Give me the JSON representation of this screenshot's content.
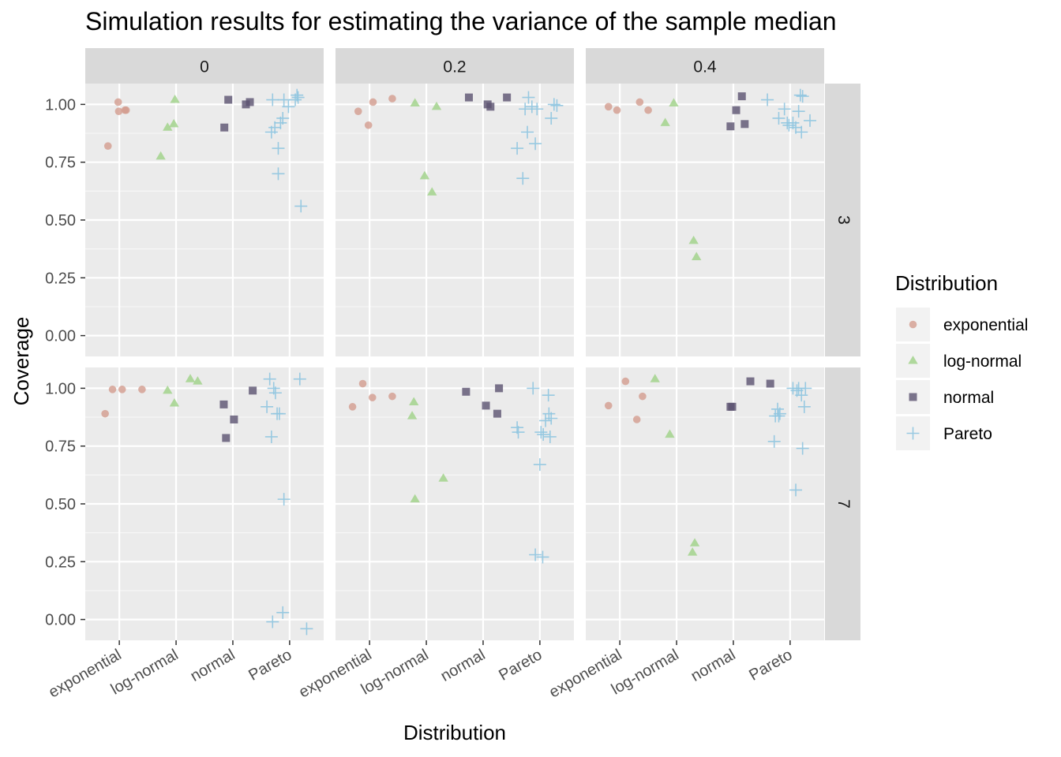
{
  "chart_data": {
    "type": "scatter",
    "title": "Simulation results for estimating the variance of the sample median",
    "xlabel": "Distribution",
    "ylabel": "Coverage",
    "categories": [
      "exponential",
      "log-normal",
      "normal",
      "Pareto"
    ],
    "y_ticks": [
      "0.00",
      "0.25",
      "0.50",
      "0.75",
      "1.00"
    ],
    "ylim": [
      -0.09,
      1.09
    ],
    "x_positions": [
      1,
      2,
      3,
      4
    ],
    "xlim": [
      0.4,
      4.6
    ],
    "grid": true,
    "col_facets": [
      "0",
      "0.2",
      "0.4"
    ],
    "row_facets": [
      "3",
      "7"
    ],
    "legend": {
      "title": "Distribution",
      "placement": "right",
      "entries": [
        {
          "label": "exponential",
          "color": "#d39c8e",
          "shape": "circle"
        },
        {
          "label": "log-normal",
          "color": "#a3d48d",
          "shape": "triangle"
        },
        {
          "label": "normal",
          "color": "#5b5270",
          "shape": "square"
        },
        {
          "label": "Pareto",
          "color": "#8fc5e0",
          "shape": "plus"
        }
      ]
    },
    "panels": [
      {
        "col": 0,
        "row": 0,
        "series": [
          {
            "name": "exponential",
            "points": [
              [
                0.8,
                0.82
              ],
              [
                0.98,
                1.01
              ],
              [
                0.99,
                0.97
              ],
              [
                1.1,
                0.975
              ],
              [
                1.12,
                0.975
              ]
            ]
          },
          {
            "name": "log-normal",
            "points": [
              [
                1.73,
                0.775
              ],
              [
                1.85,
                0.9
              ],
              [
                1.96,
                0.915
              ],
              [
                1.98,
                1.02
              ]
            ]
          },
          {
            "name": "normal",
            "points": [
              [
                2.85,
                0.9
              ],
              [
                2.92,
                1.02
              ],
              [
                3.23,
                1.0
              ],
              [
                3.3,
                1.01
              ]
            ]
          },
          {
            "name": "Pareto",
            "points": [
              [
                3.68,
                0.88
              ],
              [
                3.7,
                1.02
              ],
              [
                3.74,
                0.9
              ],
              [
                3.8,
                0.81
              ],
              [
                3.8,
                0.7
              ],
              [
                3.84,
                0.92
              ],
              [
                3.88,
                0.94
              ],
              [
                3.9,
                1.02
              ],
              [
                3.98,
                0.99
              ],
              [
                4.1,
                1.02
              ],
              [
                4.13,
                1.04
              ],
              [
                4.15,
                1.03
              ],
              [
                4.2,
                0.56
              ]
            ]
          }
        ]
      },
      {
        "col": 1,
        "row": 0,
        "series": [
          {
            "name": "exponential",
            "points": [
              [
                0.8,
                0.97
              ],
              [
                0.98,
                0.91
              ],
              [
                1.06,
                1.01
              ],
              [
                1.4,
                1.025
              ]
            ]
          },
          {
            "name": "log-normal",
            "points": [
              [
                1.8,
                1.005
              ],
              [
                1.97,
                0.69
              ],
              [
                2.1,
                0.62
              ],
              [
                2.18,
                0.99
              ]
            ]
          },
          {
            "name": "normal",
            "points": [
              [
                2.75,
                1.03
              ],
              [
                3.08,
                1.0
              ],
              [
                3.13,
                0.99
              ],
              [
                3.42,
                1.03
              ]
            ]
          },
          {
            "name": "Pareto",
            "points": [
              [
                3.6,
                0.81
              ],
              [
                3.7,
                0.68
              ],
              [
                3.74,
                0.98
              ],
              [
                3.8,
                1.03
              ],
              [
                3.78,
                0.88
              ],
              [
                3.86,
                0.99
              ],
              [
                3.92,
                0.83
              ],
              [
                3.95,
                0.98
              ],
              [
                4.2,
                0.94
              ],
              [
                4.25,
                1.0
              ],
              [
                4.3,
                0.995
              ]
            ]
          }
        ]
      },
      {
        "col": 2,
        "row": 0,
        "series": [
          {
            "name": "exponential",
            "points": [
              [
                0.8,
                0.99
              ],
              [
                0.95,
                0.975
              ],
              [
                1.35,
                1.01
              ],
              [
                1.5,
                0.975
              ]
            ]
          },
          {
            "name": "log-normal",
            "points": [
              [
                1.8,
                0.92
              ],
              [
                1.95,
                1.005
              ],
              [
                2.3,
                0.41
              ],
              [
                2.35,
                0.34
              ]
            ]
          },
          {
            "name": "normal",
            "points": [
              [
                2.95,
                0.905
              ],
              [
                3.05,
                0.975
              ],
              [
                3.15,
                1.035
              ],
              [
                3.2,
                0.915
              ]
            ]
          },
          {
            "name": "Pareto",
            "points": [
              [
                3.6,
                1.02
              ],
              [
                3.8,
                0.94
              ],
              [
                3.9,
                0.98
              ],
              [
                3.95,
                0.92
              ],
              [
                3.98,
                0.91
              ],
              [
                4.05,
                0.92
              ],
              [
                4.1,
                0.9
              ],
              [
                4.15,
                0.97
              ],
              [
                4.18,
                1.04
              ],
              [
                4.2,
                0.88
              ],
              [
                4.22,
                1.035
              ],
              [
                4.35,
                0.93
              ]
            ]
          }
        ]
      },
      {
        "col": 0,
        "row": 1,
        "series": [
          {
            "name": "exponential",
            "points": [
              [
                0.75,
                0.89
              ],
              [
                0.88,
                0.995
              ],
              [
                1.05,
                0.995
              ],
              [
                1.4,
                0.995
              ]
            ]
          },
          {
            "name": "log-normal",
            "points": [
              [
                1.85,
                0.99
              ],
              [
                1.97,
                0.935
              ],
              [
                2.25,
                1.04
              ],
              [
                2.38,
                1.03
              ]
            ]
          },
          {
            "name": "normal",
            "points": [
              [
                2.84,
                0.93
              ],
              [
                2.88,
                0.785
              ],
              [
                3.02,
                0.865
              ],
              [
                3.35,
                0.99
              ]
            ]
          },
          {
            "name": "Pareto",
            "points": [
              [
                3.6,
                0.92
              ],
              [
                3.65,
                1.04
              ],
              [
                3.68,
                0.79
              ],
              [
                3.7,
                -0.01
              ],
              [
                3.72,
                1.0
              ],
              [
                3.75,
                0.98
              ],
              [
                3.78,
                0.89
              ],
              [
                3.82,
                0.89
              ],
              [
                3.88,
                0.03
              ],
              [
                3.9,
                0.52
              ],
              [
                4.18,
                1.04
              ],
              [
                4.3,
                -0.04
              ]
            ]
          }
        ]
      },
      {
        "col": 1,
        "row": 1,
        "series": [
          {
            "name": "exponential",
            "points": [
              [
                0.7,
                0.92
              ],
              [
                0.88,
                1.02
              ],
              [
                1.05,
                0.96
              ],
              [
                1.4,
                0.965
              ]
            ]
          },
          {
            "name": "log-normal",
            "points": [
              [
                1.75,
                0.88
              ],
              [
                1.78,
                0.94
              ],
              [
                1.8,
                0.52
              ],
              [
                2.3,
                0.61
              ]
            ]
          },
          {
            "name": "normal",
            "points": [
              [
                2.7,
                0.985
              ],
              [
                3.05,
                0.925
              ],
              [
                3.25,
                0.89
              ],
              [
                3.28,
                1.0
              ]
            ]
          },
          {
            "name": "Pareto",
            "points": [
              [
                3.6,
                0.83
              ],
              [
                3.62,
                0.81
              ],
              [
                3.88,
                1.0
              ],
              [
                3.92,
                0.28
              ],
              [
                4.0,
                0.67
              ],
              [
                4.02,
                0.81
              ],
              [
                4.05,
                0.27
              ],
              [
                4.06,
                0.8
              ],
              [
                4.1,
                0.86
              ],
              [
                4.15,
                0.97
              ],
              [
                4.16,
                0.89
              ],
              [
                4.18,
                0.79
              ],
              [
                4.2,
                0.87
              ]
            ]
          }
        ]
      },
      {
        "col": 2,
        "row": 1,
        "series": [
          {
            "name": "exponential",
            "points": [
              [
                0.8,
                0.925
              ],
              [
                1.1,
                1.03
              ],
              [
                1.3,
                0.865
              ],
              [
                1.4,
                0.965
              ]
            ]
          },
          {
            "name": "log-normal",
            "points": [
              [
                1.62,
                1.04
              ],
              [
                1.88,
                0.8
              ],
              [
                2.28,
                0.29
              ],
              [
                2.32,
                0.33
              ]
            ]
          },
          {
            "name": "normal",
            "points": [
              [
                2.95,
                0.92
              ],
              [
                2.98,
                0.92
              ],
              [
                3.3,
                1.03
              ],
              [
                3.65,
                1.02
              ]
            ]
          },
          {
            "name": "Pareto",
            "points": [
              [
                3.72,
                0.77
              ],
              [
                3.74,
                0.88
              ],
              [
                3.78,
                0.91
              ],
              [
                3.8,
                0.88
              ],
              [
                3.82,
                0.89
              ],
              [
                4.05,
                1.0
              ],
              [
                4.1,
                0.56
              ],
              [
                4.12,
                0.99
              ],
              [
                4.15,
                1.0
              ],
              [
                4.2,
                0.97
              ],
              [
                4.22,
                0.74
              ],
              [
                4.25,
                0.92
              ],
              [
                4.27,
                1.0
              ]
            ]
          }
        ]
      }
    ]
  }
}
